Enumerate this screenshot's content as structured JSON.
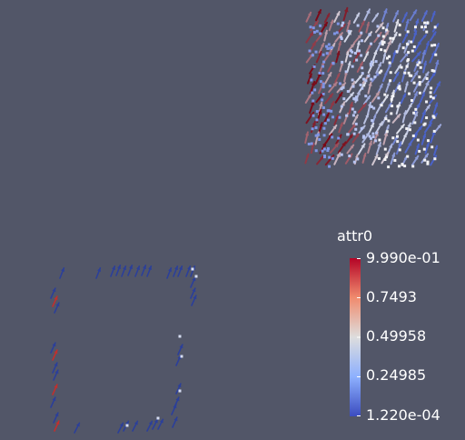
{
  "view": {
    "background": "#525668"
  },
  "colorbar": {
    "title": "attr0",
    "labels": [
      "9.990e-01",
      "0.7493",
      "0.49958",
      "0.24985",
      "1.220e-04"
    ],
    "colors": {
      "high": "#b40426",
      "mid": "#dddddd",
      "low": "#3b4cc0"
    }
  },
  "scene": {
    "top_right_object": "dense glyph cube",
    "bottom_left_object": "sparse glyph square outline"
  }
}
